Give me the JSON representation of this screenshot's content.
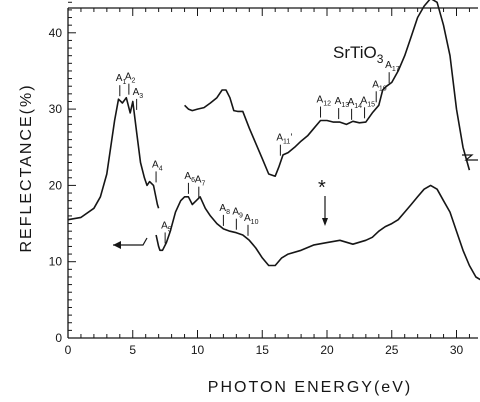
{
  "chart_data": {
    "type": "line",
    "title": "SrTiO3",
    "title_main": "SrTiO",
    "title_sub": "3",
    "xlabel": "PHOTON ENERGY(eV)",
    "ylabel": "REFLECTANCE(%)",
    "xlim": [
      0,
      32
    ],
    "ylim": [
      0,
      47
    ],
    "x_ticks": [
      "0",
      "5",
      "10",
      "15",
      "20",
      "25",
      "30"
    ],
    "y_ticks": [
      "0",
      "10",
      "20",
      "30",
      "40"
    ],
    "grid": false,
    "legend": "none",
    "annotation_symbol": "*",
    "series": [
      {
        "x": [
          0,
          1,
          2,
          2.5,
          3,
          3.3,
          3.6,
          3.9,
          4.2,
          4.5,
          4.8,
          5.0,
          5.3,
          5.6,
          5.9,
          6.1,
          6.3,
          6.6,
          6.9,
          7.0
        ],
        "values": [
          15.5,
          15.8,
          17,
          18.5,
          21.5,
          25,
          28.5,
          31.3,
          30.8,
          31.5,
          29.5,
          31,
          27,
          23,
          21,
          20,
          20.5,
          20,
          17.5,
          17
        ]
      },
      {
        "x": [
          6.8,
          7.0,
          7.1,
          7.3,
          7.6,
          7.9,
          8.3,
          8.7,
          9.0,
          9.3,
          9.6,
          9.9,
          10.2,
          10.6,
          11.0,
          11.5,
          12.0,
          12.5,
          13.0,
          13.5,
          14.0,
          14.5,
          15.0,
          15.5,
          16.0,
          16.5,
          17.0,
          18.0,
          19.0,
          20.0,
          21.0,
          22.0,
          23.0,
          23.5,
          24.0,
          24.5,
          25.0,
          25.5,
          26.0,
          26.5,
          27.0,
          27.5,
          28.0,
          28.5,
          29.0,
          29.5,
          30.0,
          30.5,
          31.0,
          31.5,
          32.0
        ],
        "values": [
          13.5,
          12,
          11.5,
          11.5,
          12.5,
          14,
          16.5,
          18,
          18.5,
          18.5,
          17.5,
          18,
          18.5,
          17,
          16,
          15,
          14.3,
          14,
          13.8,
          13.5,
          12.8,
          11.8,
          10.5,
          9.5,
          9.5,
          10.5,
          11,
          11.5,
          12.2,
          12.5,
          12.8,
          12.3,
          12.8,
          13.2,
          14,
          14.6,
          15,
          15.5,
          16.5,
          17.5,
          18.5,
          19.5,
          20,
          19.5,
          18,
          16.5,
          14,
          11.5,
          9.5,
          8,
          7.5
        ]
      },
      {
        "x": [
          9.0,
          9.3,
          9.6,
          10.0,
          10.5,
          11.0,
          11.5,
          11.9,
          12.2,
          12.5,
          12.8,
          13.1,
          13.5,
          14.0,
          14.5,
          15.0,
          15.5,
          16.0,
          16.3,
          16.6,
          17.0,
          17.5,
          18.0,
          18.5,
          19.0,
          19.5,
          20.0,
          20.5,
          21.0,
          21.5,
          22.0,
          22.5,
          23.0,
          23.5,
          24.0,
          24.3,
          24.6,
          25.0,
          25.5,
          26.0,
          26.5,
          27.0,
          27.5,
          28.0,
          28.5,
          29.0,
          29.5,
          30.0,
          30.5,
          31.0
        ],
        "values": [
          30.5,
          30,
          29.8,
          30,
          30.2,
          30.8,
          31.5,
          32.5,
          32.5,
          31.5,
          29.8,
          29.7,
          29.7,
          27.5,
          25.5,
          23.5,
          21.5,
          21.2,
          22.5,
          24,
          24.3,
          25,
          25.8,
          26.5,
          27.5,
          28.5,
          28.5,
          28.3,
          28.3,
          28,
          28.4,
          28.2,
          28.3,
          29.5,
          30.5,
          32.5,
          33,
          33.5,
          35,
          37,
          39.5,
          42,
          43.5,
          44.5,
          44,
          41,
          37,
          30,
          25,
          22
        ]
      }
    ],
    "peak_labels": [
      {
        "main": "A",
        "sub": "1",
        "x": 4.0,
        "y": 31.3
      },
      {
        "main": "A",
        "sub": "2",
        "x": 4.7,
        "y": 31.5
      },
      {
        "main": "A",
        "sub": "3",
        "x": 5.3,
        "y": 29.5
      },
      {
        "main": "A",
        "sub": "4",
        "x": 6.8,
        "y": 20
      },
      {
        "main": "A",
        "sub": "5",
        "x": 7.5,
        "y": 12
      },
      {
        "main": "A",
        "sub": "6",
        "x": 9.3,
        "y": 18.5
      },
      {
        "main": "A",
        "sub": "7",
        "x": 10.1,
        "y": 18
      },
      {
        "main": "A",
        "sub": "8",
        "x": 12.0,
        "y": 14.3
      },
      {
        "main": "A",
        "sub": "9",
        "x": 13.0,
        "y": 13.8
      },
      {
        "main": "A",
        "sub": "10",
        "x": 13.9,
        "y": 13
      },
      {
        "main": "A",
        "sub": "11",
        "prime": "’",
        "x": 16.4,
        "y": 23.5
      },
      {
        "main": "A",
        "sub": "12",
        "x": 19.5,
        "y": 28.5
      },
      {
        "main": "A",
        "sub": "13",
        "x": 20.9,
        "y": 28.3
      },
      {
        "main": "A",
        "sub": "14",
        "x": 21.9,
        "y": 28.2
      },
      {
        "main": "A",
        "sub": "15",
        "x": 22.9,
        "y": 28.4
      },
      {
        "main": "A",
        "sub": "16",
        "x": 23.8,
        "y": 30.5
      },
      {
        "main": "A",
        "sub": "17",
        "x": 24.8,
        "y": 33
      }
    ]
  }
}
